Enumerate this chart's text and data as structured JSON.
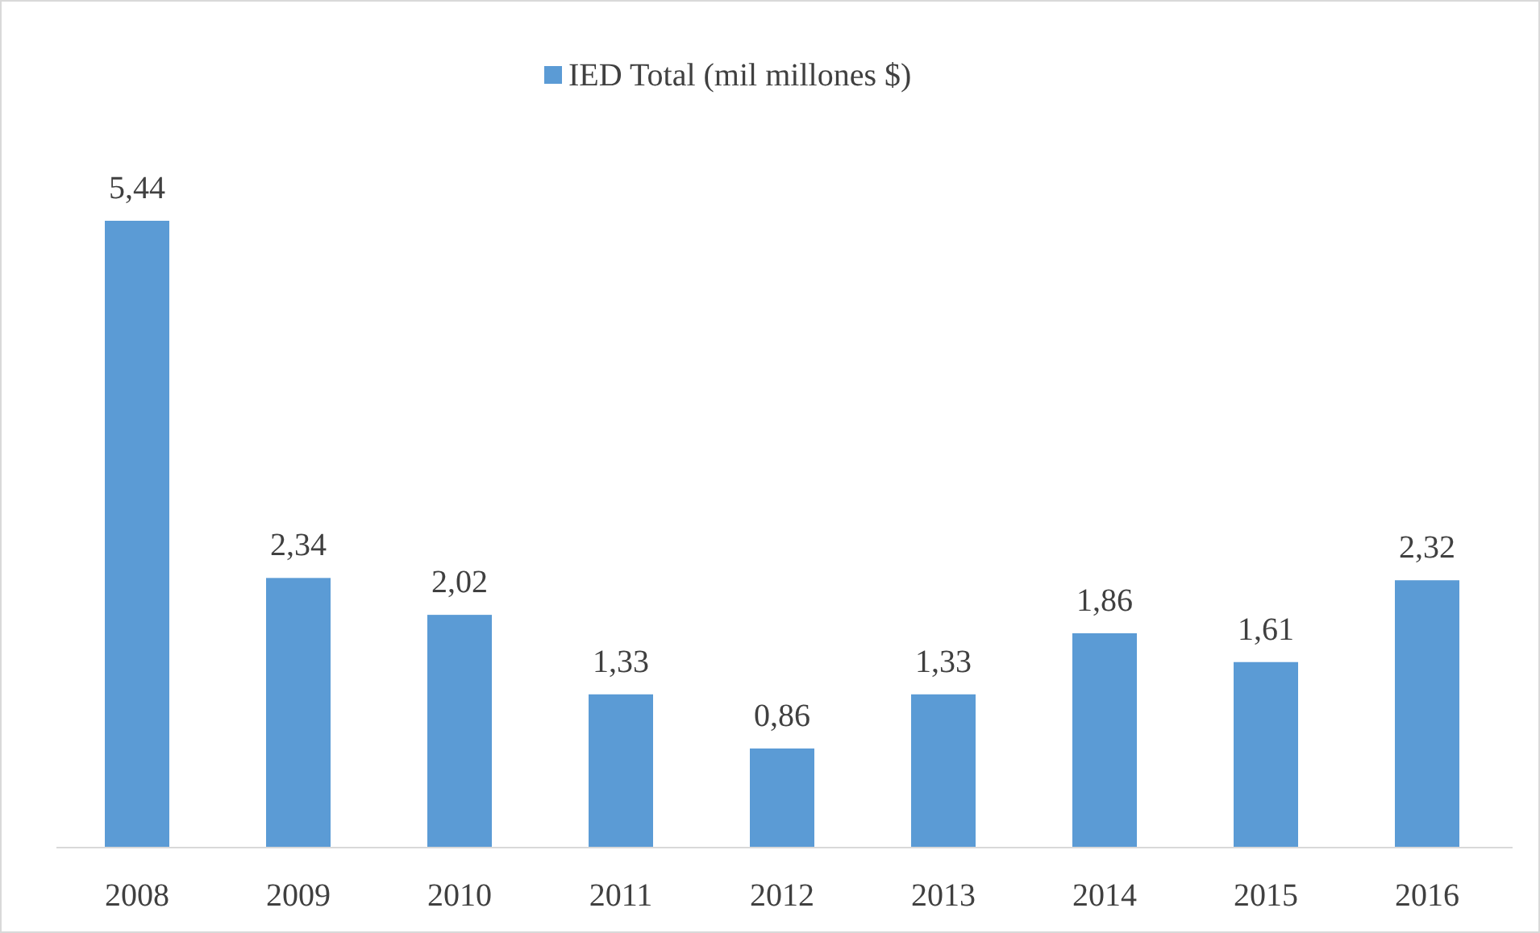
{
  "chart_data": {
    "type": "bar",
    "categories": [
      "2008",
      "2009",
      "2010",
      "2011",
      "2012",
      "2013",
      "2014",
      "2015",
      "2016"
    ],
    "series": [
      {
        "name": "IED Total (mil millones $)",
        "color": "#5b9bd5",
        "values": [
          5.44,
          2.34,
          2.02,
          1.33,
          0.86,
          1.33,
          1.86,
          1.61,
          2.32
        ],
        "value_labels": [
          "5,44",
          "2,34",
          "2,02",
          "1,33",
          "0,86",
          "1,33",
          "1,86",
          "1,61",
          "2,32"
        ]
      }
    ],
    "legend": "top",
    "grid": false
  }
}
